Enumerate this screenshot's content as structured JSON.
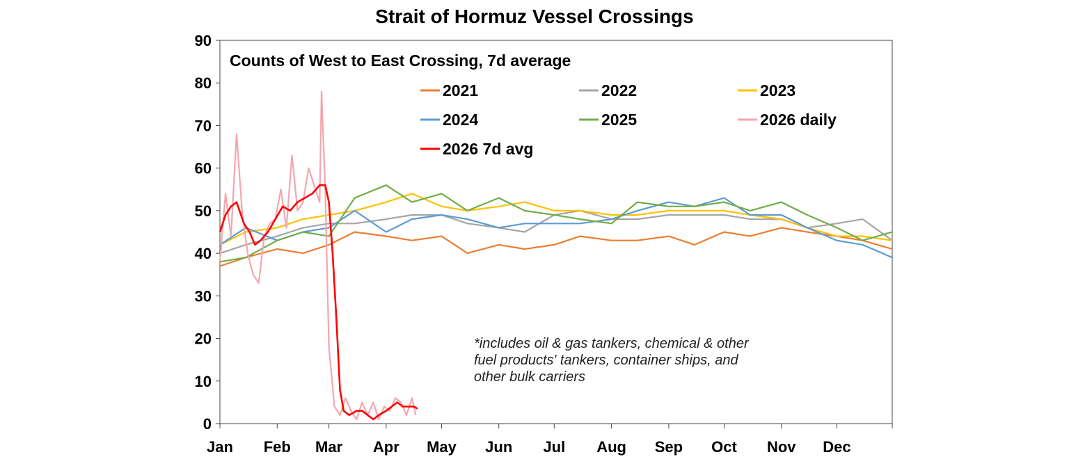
{
  "chart_data": {
    "type": "line",
    "title": "Strait of Hormuz Vessel Crossings",
    "subtitle": "Counts of West to East Crossing, 7d average",
    "note_lines": [
      "*includes oil & gas tankers, chemical & other",
      "fuel products' tankers, container ships, and",
      "other bulk carriers"
    ],
    "xlabel": "",
    "ylabel": "",
    "x_ticks": [
      "Jan",
      "Feb",
      "Mar",
      "Apr",
      "May",
      "Jun",
      "Jul",
      "Aug",
      "Sep",
      "Oct",
      "Nov",
      "Dec"
    ],
    "y_ticks": [
      0,
      10,
      20,
      30,
      40,
      50,
      60,
      70,
      80,
      90
    ],
    "ylim": [
      0,
      90
    ],
    "x_domain": [
      "Jan 1",
      "Dec 31"
    ],
    "grid": false,
    "legend_position": "top",
    "series": [
      {
        "name": "2021",
        "color": "#ED7D31",
        "x": [
          "Jan 1",
          "Jan 15",
          "Feb 1",
          "Feb 15",
          "Mar 1",
          "Mar 15",
          "Apr 1",
          "Apr 15",
          "May 1",
          "May 15",
          "Jun 1",
          "Jun 15",
          "Jul 1",
          "Jul 15",
          "Aug 1",
          "Aug 15",
          "Sep 1",
          "Sep 15",
          "Oct 1",
          "Oct 15",
          "Nov 1",
          "Nov 15",
          "Dec 1",
          "Dec 15",
          "Dec 31"
        ],
        "y": [
          37,
          39,
          41,
          40,
          42,
          45,
          44,
          43,
          44,
          40,
          42,
          41,
          42,
          44,
          43,
          43,
          44,
          42,
          45,
          44,
          46,
          45,
          44,
          43,
          41
        ]
      },
      {
        "name": "2022",
        "color": "#A5A5A5",
        "x": [
          "Jan 1",
          "Jan 15",
          "Feb 1",
          "Feb 15",
          "Mar 1",
          "Mar 15",
          "Apr 1",
          "Apr 15",
          "May 1",
          "May 15",
          "Jun 1",
          "Jun 15",
          "Jul 1",
          "Jul 15",
          "Aug 1",
          "Aug 15",
          "Sep 1",
          "Sep 15",
          "Oct 1",
          "Oct 15",
          "Nov 1",
          "Nov 15",
          "Dec 1",
          "Dec 15",
          "Dec 31"
        ],
        "y": [
          40,
          42,
          44,
          46,
          47,
          47,
          48,
          49,
          49,
          47,
          46,
          45,
          49,
          50,
          48,
          48,
          49,
          49,
          49,
          48,
          48,
          46,
          47,
          48,
          43
        ]
      },
      {
        "name": "2023",
        "color": "#FFC000",
        "x": [
          "Jan 1",
          "Jan 15",
          "Feb 1",
          "Feb 15",
          "Mar 1",
          "Mar 15",
          "Apr 1",
          "Apr 15",
          "May 1",
          "May 15",
          "Jun 1",
          "Jun 15",
          "Jul 1",
          "Jul 15",
          "Aug 1",
          "Aug 15",
          "Sep 1",
          "Sep 15",
          "Oct 1",
          "Oct 15",
          "Nov 1",
          "Nov 15",
          "Dec 1",
          "Dec 15",
          "Dec 31"
        ],
        "y": [
          42,
          45,
          46,
          48,
          49,
          50,
          52,
          54,
          51,
          50,
          51,
          52,
          50,
          50,
          49,
          49,
          50,
          50,
          50,
          49,
          48,
          46,
          44,
          44,
          43
        ]
      },
      {
        "name": "2024",
        "color": "#5B9BD5",
        "x": [
          "Jan 1",
          "Jan 15",
          "Feb 1",
          "Feb 15",
          "Mar 1",
          "Mar 15",
          "Apr 1",
          "Apr 15",
          "May 1",
          "May 15",
          "Jun 1",
          "Jun 15",
          "Jul 1",
          "Jul 15",
          "Aug 1",
          "Aug 15",
          "Sep 1",
          "Sep 15",
          "Oct 1",
          "Oct 15",
          "Nov 1",
          "Nov 15",
          "Dec 1",
          "Dec 15",
          "Dec 31"
        ],
        "y": [
          42,
          46,
          43,
          45,
          46,
          50,
          45,
          48,
          49,
          48,
          46,
          47,
          47,
          47,
          48,
          50,
          52,
          51,
          53,
          49,
          49,
          46,
          43,
          42,
          39
        ]
      },
      {
        "name": "2025",
        "color": "#70AD47",
        "x": [
          "Jan 1",
          "Jan 15",
          "Feb 1",
          "Feb 15",
          "Mar 1",
          "Mar 15",
          "Apr 1",
          "Apr 15",
          "May 1",
          "May 15",
          "Jun 1",
          "Jun 15",
          "Jul 1",
          "Jul 15",
          "Aug 1",
          "Aug 15",
          "Sep 1",
          "Sep 15",
          "Oct 1",
          "Oct 15",
          "Nov 1",
          "Nov 15",
          "Dec 1",
          "Dec 15",
          "Dec 31"
        ],
        "y": [
          38,
          39,
          43,
          45,
          44,
          53,
          56,
          52,
          54,
          50,
          53,
          50,
          49,
          48,
          47,
          52,
          51,
          51,
          52,
          50,
          52,
          49,
          46,
          43,
          45
        ]
      },
      {
        "name": "2026 daily",
        "color": "#F4A6AE",
        "x": [
          "Jan 1",
          "Jan 4",
          "Jan 7",
          "Jan 10",
          "Jan 13",
          "Jan 16",
          "Jan 19",
          "Jan 22",
          "Jan 25",
          "Jan 28",
          "Jan 31",
          "Feb 3",
          "Feb 6",
          "Feb 9",
          "Feb 12",
          "Feb 15",
          "Feb 18",
          "Feb 21",
          "Feb 24",
          "Feb 25",
          "Feb 27",
          "Mar 1",
          "Mar 4",
          "Mar 7",
          "Mar 10",
          "Mar 13",
          "Mar 16",
          "Mar 19",
          "Mar 22",
          "Mar 25",
          "Mar 28",
          "Mar 31",
          "Apr 3",
          "Apr 6",
          "Apr 9",
          "Apr 12",
          "Apr 15",
          "Apr 17"
        ],
        "y": [
          38,
          54,
          44,
          68,
          50,
          40,
          35,
          33,
          44,
          47,
          48,
          55,
          46,
          63,
          50,
          52,
          60,
          56,
          52,
          78,
          55,
          18,
          4,
          2,
          6,
          3,
          1,
          5,
          2,
          5,
          1,
          4,
          3,
          6,
          5,
          2,
          6,
          2
        ]
      },
      {
        "name": "2026 7d avg",
        "color": "#FF0000",
        "x": [
          "Jan 1",
          "Jan 4",
          "Jan 7",
          "Jan 10",
          "Jan 14",
          "Jan 17",
          "Jan 20",
          "Jan 23",
          "Jan 27",
          "Jan 31",
          "Feb 4",
          "Feb 8",
          "Feb 12",
          "Feb 16",
          "Feb 20",
          "Feb 24",
          "Feb 27",
          "Mar 1",
          "Mar 3",
          "Mar 5",
          "Mar 7",
          "Mar 9",
          "Mar 12",
          "Mar 16",
          "Mar 19",
          "Mar 22",
          "Mar 25",
          "Mar 28",
          "Apr 1",
          "Apr 4",
          "Apr 7",
          "Apr 10",
          "Apr 13",
          "Apr 16",
          "Apr 18"
        ],
        "y": [
          45,
          49,
          51,
          52,
          47,
          45,
          42,
          43,
          45,
          48,
          51,
          50,
          52,
          53,
          54,
          56,
          56,
          52,
          40,
          25,
          8,
          3,
          2,
          3,
          3,
          2,
          1,
          2,
          3,
          4,
          5,
          4,
          4,
          4,
          3.5
        ]
      }
    ]
  }
}
